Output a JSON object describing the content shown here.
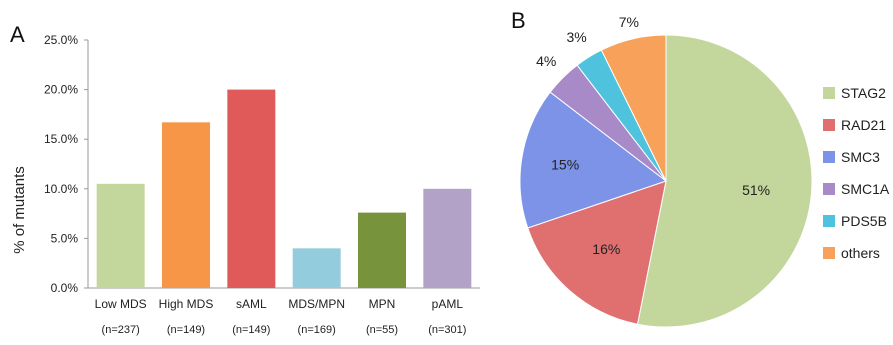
{
  "panels": {
    "a": {
      "label": "A"
    },
    "b": {
      "label": "B"
    }
  },
  "chart_data": [
    {
      "type": "bar",
      "panel": "A",
      "ylabel": "% of mutants",
      "ylim": [
        0,
        25
      ],
      "yticks": [
        0,
        5,
        10,
        15,
        20,
        25
      ],
      "ytick_labels": [
        "0.0%",
        "5.0%",
        "10.0%",
        "15.0%",
        "20.0%",
        "25.0%"
      ],
      "grid": false,
      "categories": [
        "Low MDS",
        "High MDS",
        "sAML",
        "MDS/MPN",
        "MPN",
        "pAML"
      ],
      "category_counts": [
        "(n=237)",
        "(n=149)",
        "(n=149)",
        "(n=169)",
        "(n=55)",
        "(n=301)"
      ],
      "values": [
        10.5,
        16.7,
        20.0,
        4.0,
        7.6,
        10.0
      ],
      "colors": [
        "#c3d69b",
        "#f79646",
        "#e05a5a",
        "#93cddd",
        "#77933c",
        "#b3a2c7"
      ]
    },
    {
      "type": "pie",
      "panel": "B",
      "legend_position": "right",
      "labels": [
        "STAG2",
        "RAD21",
        "SMC3",
        "SMC1A",
        "PDS5B",
        "others"
      ],
      "values": [
        51,
        16,
        15,
        4,
        3,
        7
      ],
      "value_labels": [
        "51%",
        "16%",
        "15%",
        "4%",
        "3%",
        "7%"
      ],
      "colors": [
        "#c3d69b",
        "#e07070",
        "#7d93e8",
        "#a98ac9",
        "#4fc3de",
        "#f7a15a"
      ]
    }
  ]
}
